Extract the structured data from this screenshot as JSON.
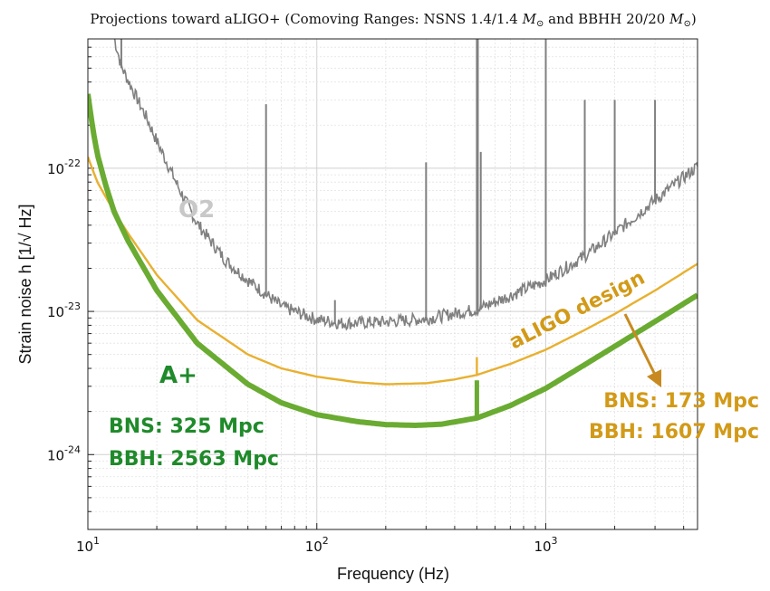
{
  "chart_data": {
    "type": "line",
    "title_plain": "Projections toward aLIGO+ (Comoving Ranges: NSNS 1.4/1.4 ",
    "title_m1": "M",
    "title_mid": " and BBHH 20/20 ",
    "title_m2": "M",
    "title_close": ")",
    "title_sub": "⊙",
    "xlabel": "Frequency (Hz)",
    "ylabel": "Strain noise h [1/√ Hz]",
    "x_scale": "log",
    "y_scale": "log",
    "xlim": [
      10,
      4600
    ],
    "ylim": [
      3e-25,
      8e-22
    ],
    "grid": true,
    "x_ticks": [
      {
        "value": 10,
        "base": "10",
        "exp": "1"
      },
      {
        "value": 100,
        "base": "10",
        "exp": "2"
      },
      {
        "value": 1000,
        "base": "10",
        "exp": "3"
      }
    ],
    "y_ticks": [
      {
        "value": 1e-24,
        "base": "10",
        "exp": "-24"
      },
      {
        "value": 1e-23,
        "base": "10",
        "exp": "-23"
      },
      {
        "value": 1e-22,
        "base": "10",
        "exp": "-22"
      }
    ],
    "series": [
      {
        "name": "O2",
        "color": "#808080",
        "x": [
          13,
          14,
          16,
          18,
          20,
          25,
          30,
          40,
          50,
          70,
          100,
          130,
          200,
          300,
          500,
          700,
          1000,
          1500,
          2000,
          3000,
          4600
        ],
        "y": [
          8e-22,
          5e-22,
          3.2e-22,
          2.2e-22,
          1.5e-22,
          7e-23,
          4e-23,
          2.2e-23,
          1.6e-23,
          1.05e-23,
          8.5e-24,
          8e-24,
          8.2e-24,
          8.6e-24,
          1e-23,
          1.25e-23,
          1.6e-23,
          2.4e-23,
          3.4e-23,
          5.8e-23,
          1e-22
        ],
        "peaks": [
          {
            "x": 14,
            "y": 8e-22
          },
          {
            "x": 60,
            "y": 2.8e-22
          },
          {
            "x": 120,
            "y": 1.2e-23
          },
          {
            "x": 300,
            "y": 1.1e-22
          },
          {
            "x": 500,
            "y": 8e-22
          },
          {
            "x": 505,
            "y": 8e-22
          },
          {
            "x": 520,
            "y": 1.3e-22
          },
          {
            "x": 1000,
            "y": 8e-22
          },
          {
            "x": 1480,
            "y": 3e-22
          },
          {
            "x": 2000,
            "y": 3e-22
          },
          {
            "x": 3000,
            "y": 3e-22
          }
        ]
      },
      {
        "name": "aLIGO design",
        "color": "#e8b030",
        "x": [
          10,
          11,
          13,
          15,
          20,
          30,
          50,
          70,
          100,
          150,
          200,
          300,
          400,
          500,
          700,
          1000,
          1500,
          2000,
          3000,
          4600
        ],
        "y": [
          1.2e-22,
          8e-23,
          5e-23,
          3.5e-23,
          1.8e-23,
          8.7e-24,
          5e-24,
          4e-24,
          3.5e-24,
          3.2e-24,
          3.1e-24,
          3.15e-24,
          3.35e-24,
          3.6e-24,
          4.3e-24,
          5.4e-24,
          7.5e-24,
          9.6e-24,
          1.4e-23,
          2.15e-23
        ],
        "spike": {
          "x": 500,
          "y_low": 3.6e-24,
          "y_high": 4.8e-24
        }
      },
      {
        "name": "A+",
        "color": "#6aab32",
        "x": [
          10,
          10.5,
          11,
          12,
          13,
          15,
          20,
          30,
          50,
          70,
          100,
          150,
          200,
          270,
          350,
          500,
          700,
          1000,
          1500,
          2000,
          3000,
          4600
        ],
        "y": [
          3.3e-22,
          1.9e-22,
          1.25e-22,
          7.5e-23,
          5e-23,
          3.1e-23,
          1.4e-23,
          6e-24,
          3.1e-24,
          2.3e-24,
          1.9e-24,
          1.7e-24,
          1.62e-24,
          1.6e-24,
          1.63e-24,
          1.8e-24,
          2.2e-24,
          2.9e-24,
          4.3e-24,
          5.7e-24,
          8.5e-24,
          1.3e-23
        ],
        "spike": {
          "x": 500,
          "y_low": 1.75e-24,
          "y_high": 3.3e-24
        }
      }
    ],
    "annotations": {
      "o2": "O2",
      "aligo": "aLIGO design",
      "aplus": "A+",
      "aplus_bns": "BNS: 325 Mpc",
      "aplus_bbh": "BBH: 2563 Mpc",
      "aligo_bns": "BNS: 173 Mpc",
      "aligo_bbh": "BBH: 1607 Mpc"
    },
    "colors": {
      "o2_text": "#c8c8c8",
      "aligo_text": "#d29a18",
      "aplus_text": "#1f8a2a",
      "arrow": "#c88a20"
    }
  }
}
